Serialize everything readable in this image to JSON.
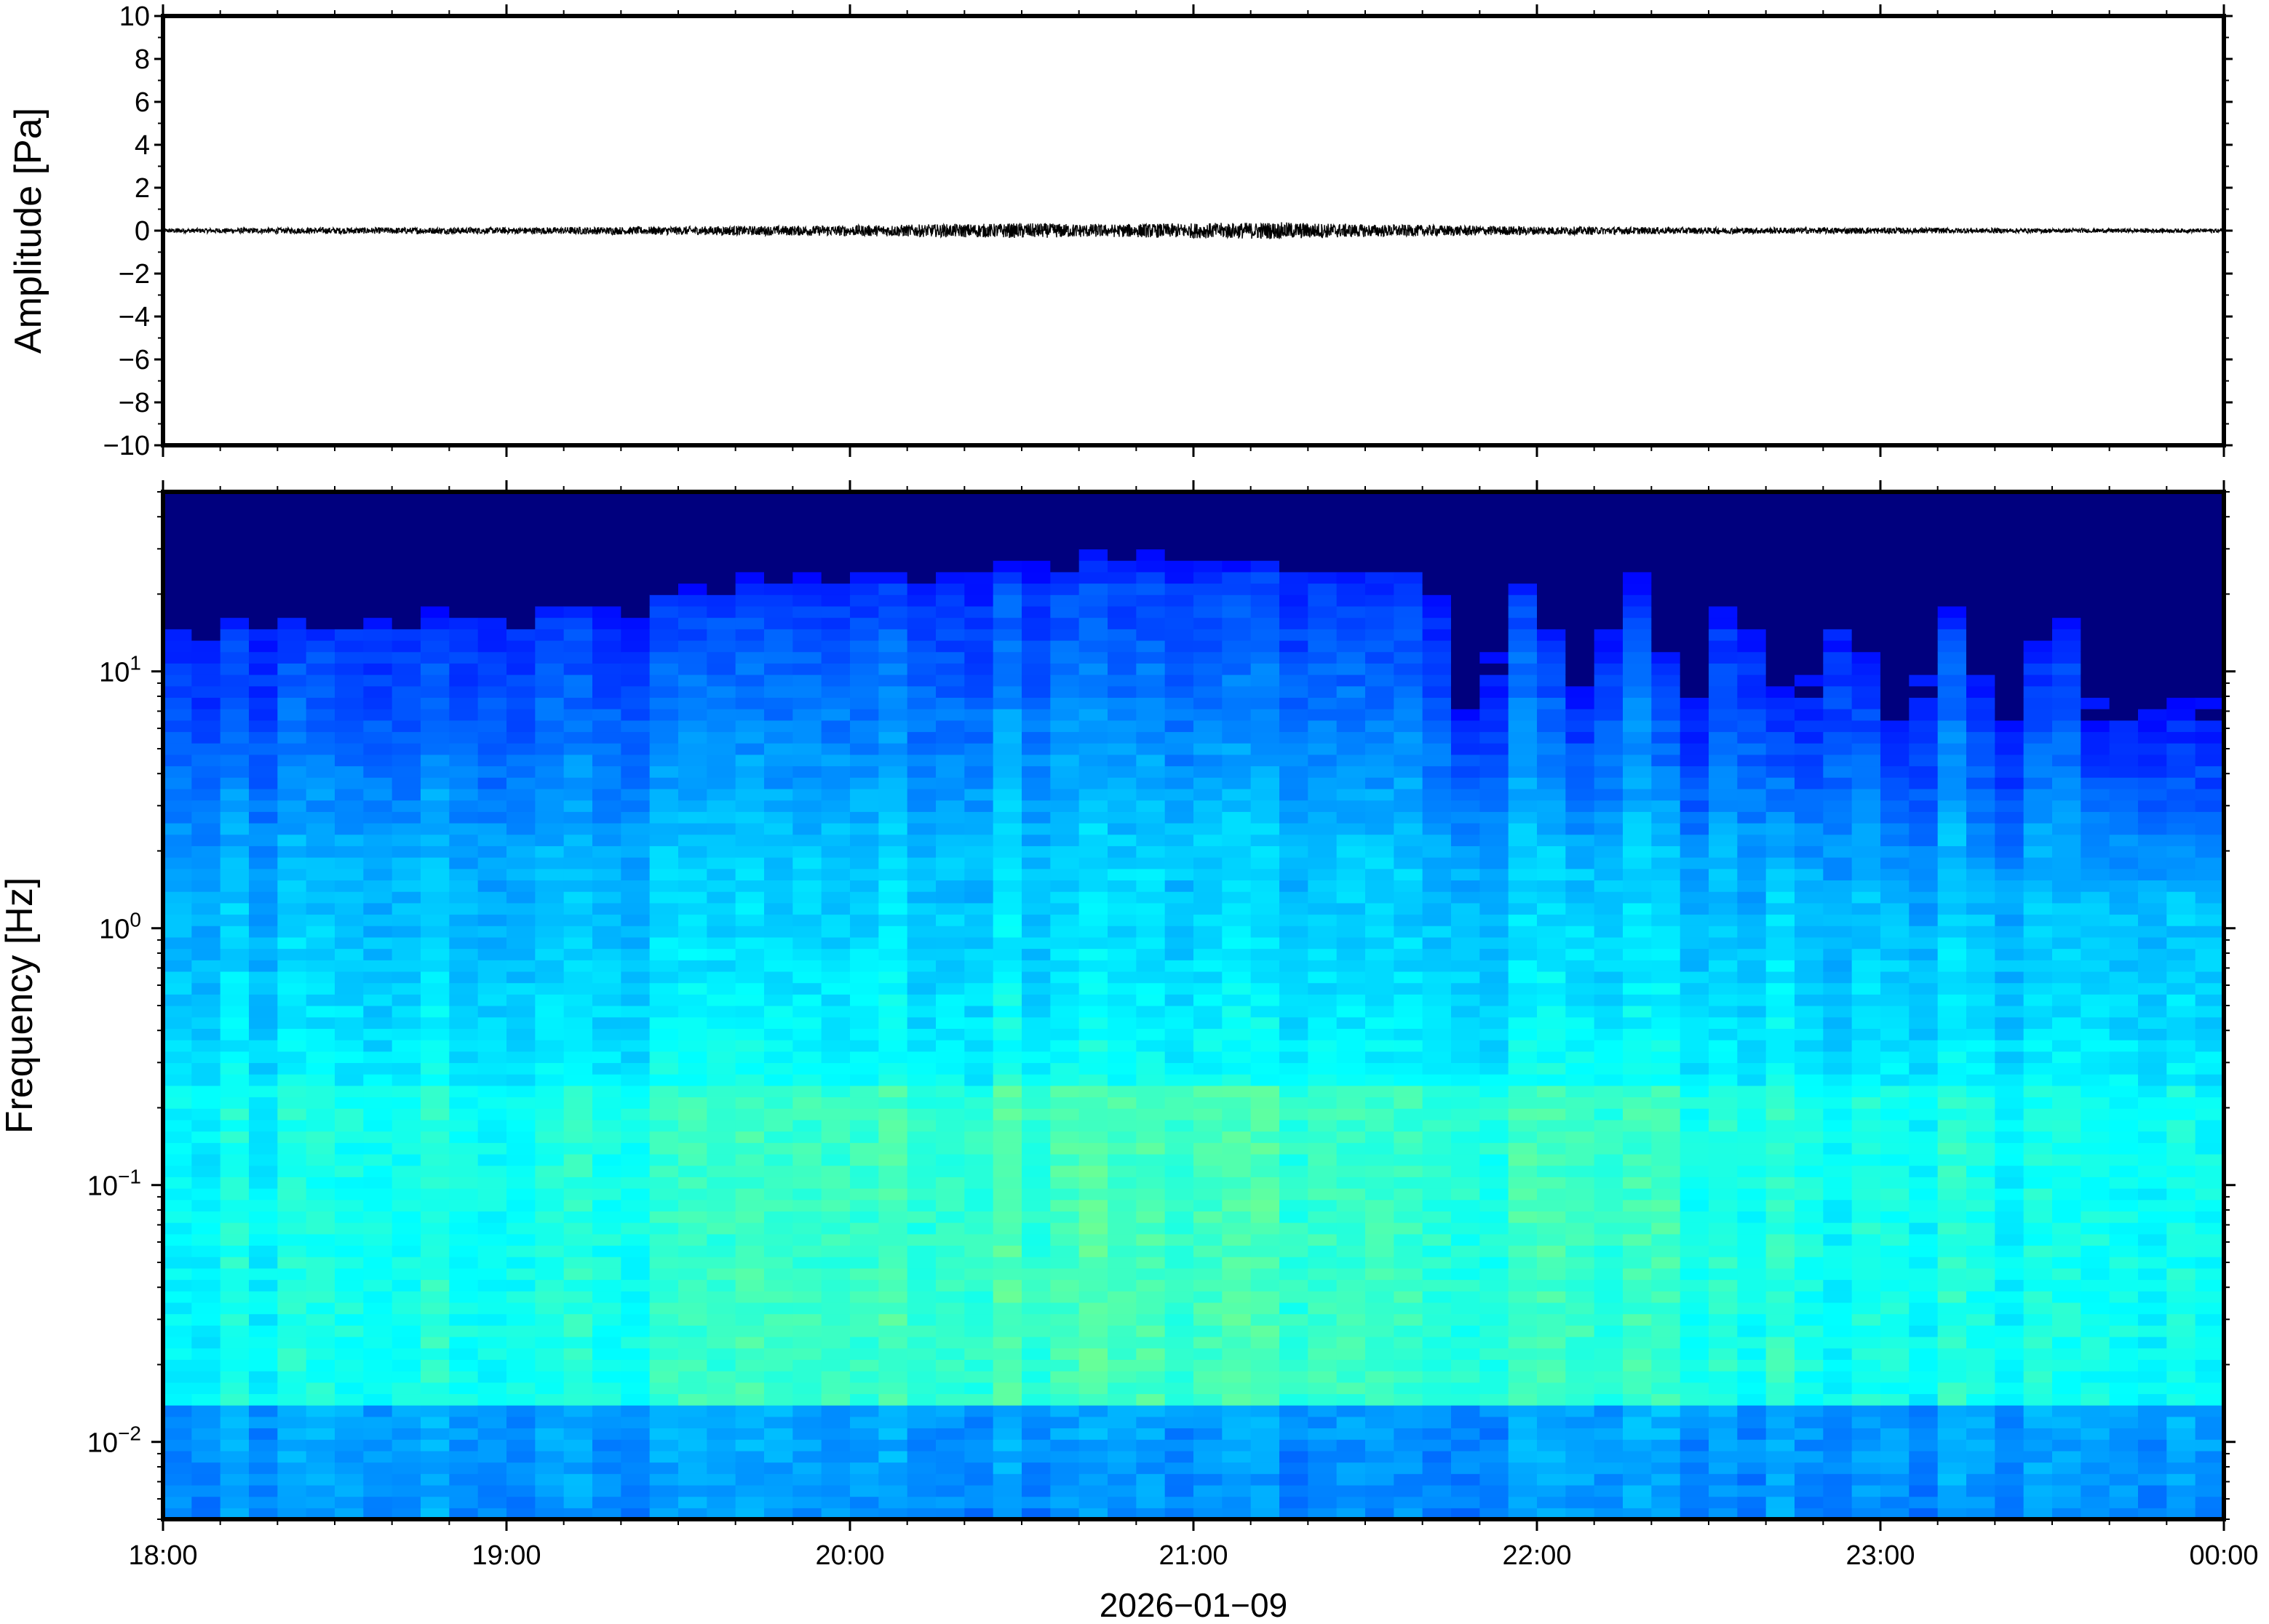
{
  "chart_data": [
    {
      "type": "line",
      "ylabel": "Amplitude [Pa]",
      "ylim": [
        -10,
        10
      ],
      "y_ticks": [
        "10",
        "8",
        "6",
        "4",
        "2",
        "0",
        "−2",
        "−4",
        "−6",
        "−8",
        "−10"
      ],
      "y_tick_values": [
        10,
        8,
        6,
        4,
        2,
        0,
        -2,
        -4,
        -6,
        -8,
        -10
      ],
      "xlim": [
        "18:00",
        "00:00"
      ],
      "series": [
        {
          "color": "#000000",
          "description_of_envelope": null,
          "x": [
            "18:00",
            "18:30",
            "19:00",
            "19:30",
            "20:00",
            "20:30",
            "20:45",
            "21:00",
            "21:15",
            "21:30",
            "22:00",
            "22:30",
            "23:00",
            "23:30",
            "00:00"
          ],
          "values": [
            0.1,
            0.15,
            0.15,
            0.2,
            0.25,
            0.35,
            0.3,
            0.35,
            0.4,
            0.3,
            0.2,
            0.15,
            0.15,
            0.1,
            0.1
          ]
        }
      ]
    },
    {
      "type": "heatmap",
      "ylabel": "Frequency [Hz]",
      "yscale": "log",
      "ylim": [
        0.005,
        50
      ],
      "y_ticks": [
        {
          "base": "10",
          "exp": "1",
          "value": 10
        },
        {
          "base": "10",
          "exp": "0",
          "value": 1
        },
        {
          "base": "10",
          "exp": "−1",
          "value": 0.1
        },
        {
          "base": "10",
          "exp": "−2",
          "value": 0.01
        }
      ],
      "x_ticks": [
        "18:00",
        "19:00",
        "20:00",
        "21:00",
        "22:00",
        "23:00",
        "00:00"
      ],
      "xlabel": "2026−01−09",
      "colormap": "jet",
      "colors": {
        "low": "#000080",
        "mid": "#3fc8e8",
        "high": "#f0a040"
      }
    }
  ]
}
